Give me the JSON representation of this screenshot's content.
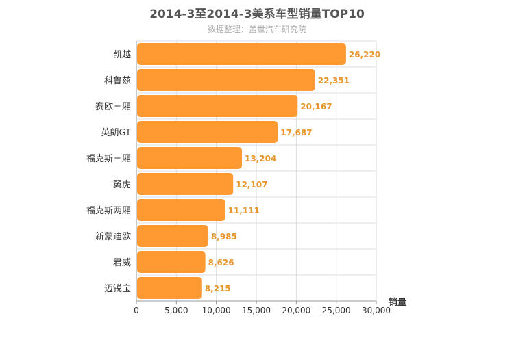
{
  "chart_data": {
    "type": "bar",
    "orientation": "horizontal",
    "title": "2014-3至2014-3美系车型销量TOP10",
    "subtitle": "数据整理：盖世汽车研究院",
    "xlabel": "销量",
    "ylabel": "",
    "xlim": [
      0,
      30000
    ],
    "x_ticks": [
      0,
      5000,
      10000,
      15000,
      20000,
      25000,
      30000
    ],
    "x_tick_labels": [
      "0",
      "5,000",
      "10,000",
      "15,000",
      "20,000",
      "25,000",
      "30,000"
    ],
    "categories": [
      "凯越",
      "科鲁兹",
      "赛欧三厢",
      "英朗GT",
      "福克斯三厢",
      "翼虎",
      "福克斯两厢",
      "新蒙迪欧",
      "君威",
      "迈锐宝"
    ],
    "values": [
      26220,
      22351,
      20167,
      17687,
      13204,
      12107,
      11111,
      8985,
      8626,
      8215
    ],
    "value_labels": [
      "26,220",
      "22,351",
      "20,167",
      "17,687",
      "13,204",
      "12,107",
      "11,111",
      "8,985",
      "8,626",
      "8,215"
    ],
    "bar_color": "#ff9a33",
    "label_color": "#e8962e",
    "grid": true,
    "legend": "none"
  }
}
